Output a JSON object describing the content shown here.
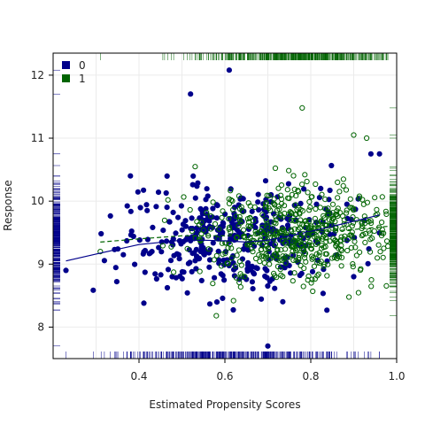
{
  "chart_data": {
    "type": "scatter",
    "title": "",
    "xlabel": "Estimated Propensity Scores",
    "ylabel": "Response",
    "xlim": [
      0.2,
      1.0
    ],
    "ylim": [
      7.5,
      12.35
    ],
    "x_ticks": [
      0.4,
      0.6,
      0.8,
      1.0
    ],
    "x_tick_labels": [
      "0.4",
      "0.6",
      "0.8",
      "1.0"
    ],
    "y_ticks": [
      8,
      9,
      10,
      11,
      12
    ],
    "y_tick_labels": [
      "8",
      "9",
      "10",
      "11",
      "12"
    ],
    "grid": true,
    "legend_position": "top-left",
    "rug_plots": true,
    "legend": [
      {
        "label": "0",
        "color": "#00008B"
      },
      {
        "label": "1",
        "color": "#006400"
      }
    ],
    "series": [
      {
        "name": "0",
        "marker": "filled-circle",
        "color": "#00008B",
        "x_range": [
          0.23,
          0.96
        ],
        "y_range": [
          7.7,
          12.1
        ],
        "approx_n": 400,
        "highlight_points": [
          {
            "x": 0.23,
            "y": 8.9
          },
          {
            "x": 0.61,
            "y": 12.08
          },
          {
            "x": 0.52,
            "y": 11.7
          },
          {
            "x": 0.7,
            "y": 7.7
          },
          {
            "x": 0.38,
            "y": 10.4
          },
          {
            "x": 0.94,
            "y": 10.75
          },
          {
            "x": 0.96,
            "y": 10.75
          },
          {
            "x": 0.9,
            "y": 8.8
          }
        ],
        "trend": {
          "style": "solid",
          "x": [
            0.23,
            0.3,
            0.4,
            0.5,
            0.55,
            0.6,
            0.65,
            0.7,
            0.75,
            0.8,
            0.85,
            0.9,
            0.96
          ],
          "y": [
            9.05,
            9.16,
            9.31,
            9.38,
            9.38,
            9.37,
            9.35,
            9.38,
            9.45,
            9.52,
            9.6,
            9.68,
            9.78
          ]
        }
      },
      {
        "name": "1",
        "marker": "open-circle",
        "color": "#006400",
        "x_range": [
          0.31,
          0.98
        ],
        "y_range": [
          8.15,
          11.5
        ],
        "approx_n": 520,
        "highlight_points": [
          {
            "x": 0.31,
            "y": 9.2
          },
          {
            "x": 0.78,
            "y": 11.48
          },
          {
            "x": 0.58,
            "y": 8.18
          },
          {
            "x": 0.62,
            "y": 8.42
          },
          {
            "x": 0.9,
            "y": 11.05
          },
          {
            "x": 0.93,
            "y": 11.0
          },
          {
            "x": 0.97,
            "y": 9.25
          }
        ],
        "trend": {
          "style": "dashed",
          "x": [
            0.31,
            0.4,
            0.5,
            0.6,
            0.7,
            0.8,
            0.9,
            0.98
          ],
          "y": [
            9.35,
            9.4,
            9.45,
            9.45,
            9.46,
            9.5,
            9.55,
            9.6
          ]
        }
      }
    ]
  }
}
